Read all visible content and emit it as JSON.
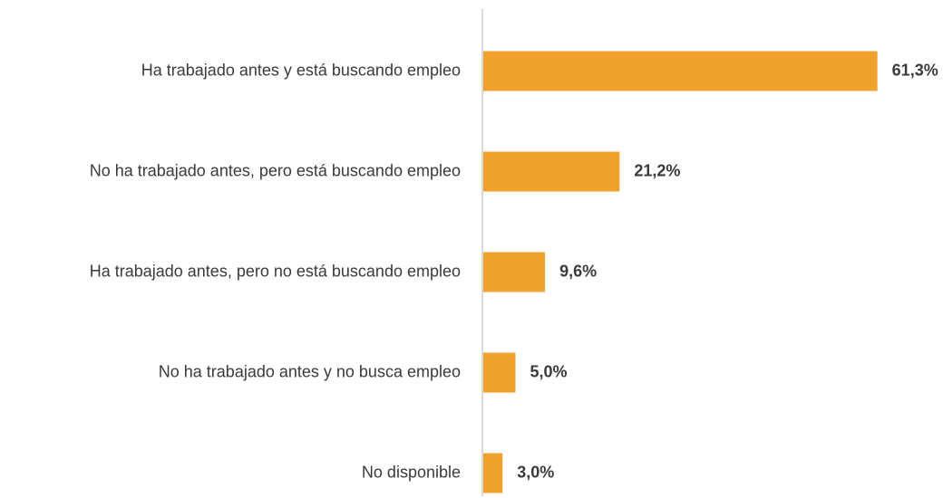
{
  "chart_data": {
    "type": "bar",
    "orientation": "horizontal",
    "categories": [
      "Ha trabajado antes y está buscando empleo",
      "No ha trabajado antes, pero está buscando empleo",
      "Ha trabajado antes, pero no está buscando empleo",
      "No ha trabajado antes y no busca empleo",
      "No disponible"
    ],
    "values": [
      61.3,
      21.2,
      9.6,
      5.0,
      3.0
    ],
    "data_labels": [
      "61,3%",
      "21,2%",
      "9,6%",
      "5,0%",
      "3,0%"
    ],
    "xlim": [
      0,
      66
    ],
    "title": "",
    "xlabel": "",
    "ylabel": "",
    "grid": false,
    "legend": "none",
    "bar_color": "#F0A22E",
    "axis_color": "#D9D9D9"
  }
}
